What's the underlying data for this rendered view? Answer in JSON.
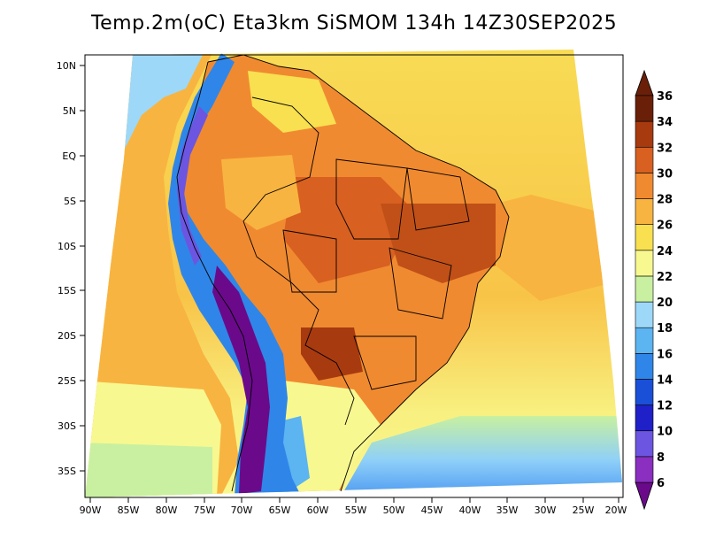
{
  "title": "Temp.2m(oC) Eta3km SiSMOM 134h 14Z30SEP2025",
  "lat_axis": {
    "labels": [
      "10N",
      "5N",
      "EQ",
      "5S",
      "10S",
      "15S",
      "20S",
      "25S",
      "30S",
      "35S"
    ]
  },
  "lon_axis": {
    "labels": [
      "90W",
      "85W",
      "80W",
      "75W",
      "70W",
      "65W",
      "60W",
      "55W",
      "50W",
      "45W",
      "40W",
      "35W",
      "30W",
      "25W",
      "20W"
    ]
  },
  "colorbar": {
    "labels": [
      "6",
      "8",
      "10",
      "12",
      "14",
      "16",
      "18",
      "20",
      "22",
      "24",
      "26",
      "28",
      "30",
      "32",
      "34",
      "36"
    ],
    "colors": [
      "#6a0a8a",
      "#8a2fc0",
      "#6c55e0",
      "#2020c8",
      "#1a4fd8",
      "#2f86e8",
      "#5cb4f0",
      "#9ed8f8",
      "#c8f0a0",
      "#f8f890",
      "#f8e050",
      "#f8b440",
      "#f08a30",
      "#d86020",
      "#a83a10",
      "#6a2008"
    ]
  }
}
